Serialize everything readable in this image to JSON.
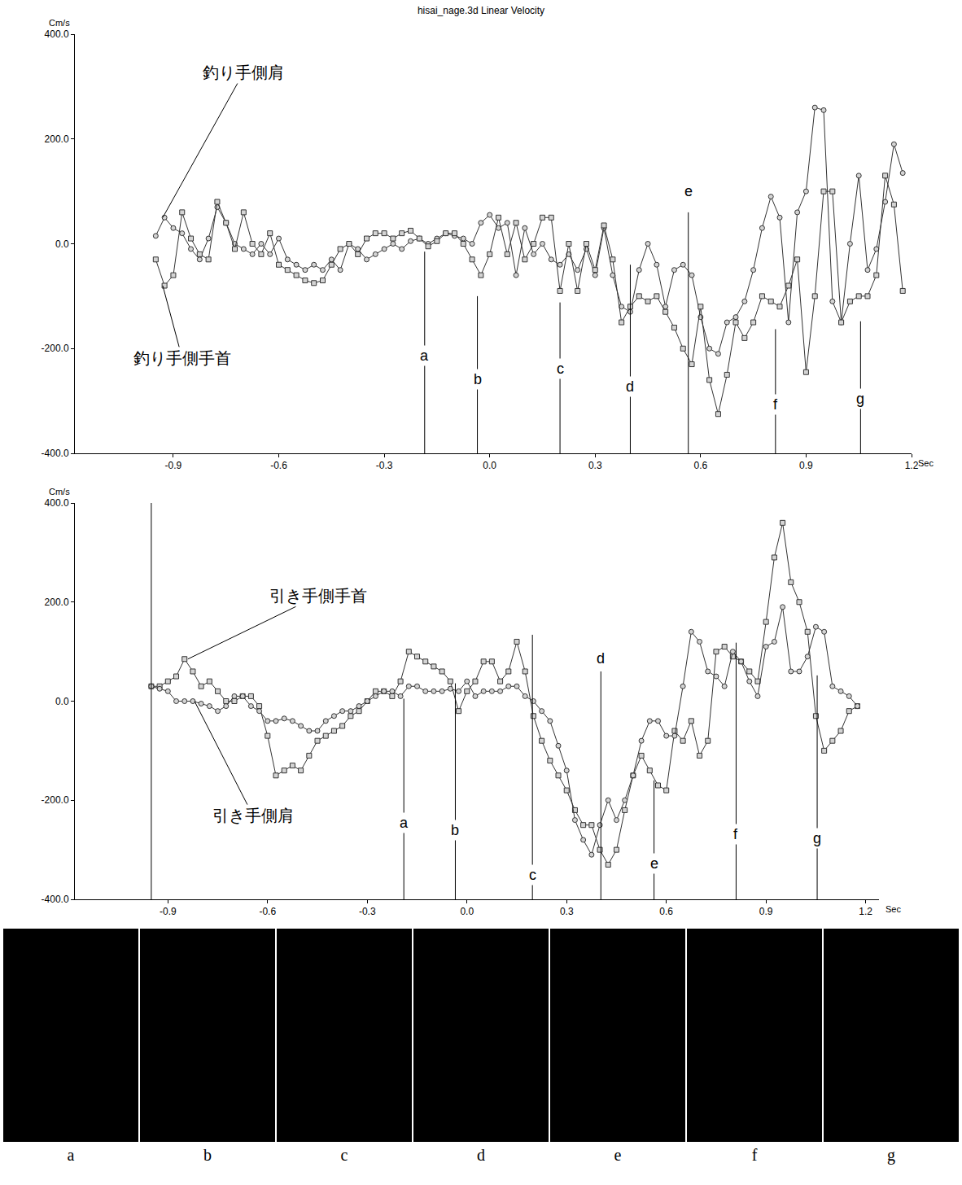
{
  "chart_data": [
    {
      "type": "line",
      "title": "hisai_nage.3d Linear Velocity",
      "y_label": "Cm/s",
      "x_label": "Sec",
      "x": [
        -0.95,
        -0.925,
        -0.9,
        -0.875,
        -0.85,
        -0.825,
        -0.8,
        -0.775,
        -0.75,
        -0.725,
        -0.7,
        -0.675,
        -0.65,
        -0.625,
        -0.6,
        -0.575,
        -0.55,
        -0.525,
        -0.5,
        -0.475,
        -0.45,
        -0.425,
        -0.4,
        -0.375,
        -0.35,
        -0.325,
        -0.3,
        -0.275,
        -0.25,
        -0.225,
        -0.2,
        -0.175,
        -0.15,
        -0.125,
        -0.1,
        -0.075,
        -0.05,
        -0.025,
        0,
        0.025,
        0.05,
        0.075,
        0.1,
        0.125,
        0.15,
        0.175,
        0.2,
        0.225,
        0.25,
        0.275,
        0.3,
        0.325,
        0.35,
        0.375,
        0.4,
        0.425,
        0.45,
        0.475,
        0.5,
        0.525,
        0.55,
        0.575,
        0.6,
        0.625,
        0.65,
        0.675,
        0.7,
        0.725,
        0.75,
        0.775,
        0.8,
        0.825,
        0.85,
        0.875,
        0.9,
        0.925,
        0.95,
        0.975,
        1.0,
        1.025,
        1.05,
        1.075,
        1.1,
        1.125,
        1.15,
        1.175
      ],
      "series": [
        {
          "name": "釣り手側肩",
          "color": "#333333",
          "marker": "circle",
          "label_at": [
            -0.7,
            327
          ],
          "points_to": [
            -0.93,
            50
          ],
          "values": [
            15,
            50,
            30,
            20,
            -10,
            -30,
            10,
            70,
            40,
            0,
            -10,
            -20,
            0,
            -20,
            10,
            -30,
            -40,
            -50,
            -40,
            -50,
            -30,
            -50,
            0,
            -10,
            -30,
            -20,
            -10,
            0,
            -10,
            5,
            10,
            0,
            10,
            20,
            15,
            10,
            0,
            40,
            55,
            30,
            40,
            -60,
            30,
            -20,
            0,
            -30,
            -40,
            -20,
            -50,
            -10,
            -60,
            30,
            -60,
            -120,
            -130,
            -50,
            0,
            -40,
            -120,
            -50,
            -40,
            -60,
            -140,
            -200,
            -210,
            -150,
            -140,
            -110,
            -50,
            30,
            90,
            50,
            -150,
            60,
            100,
            260,
            255,
            -110,
            -150,
            0,
            130,
            -50,
            -10,
            80,
            190,
            135
          ]
        },
        {
          "name": "釣り手側手首",
          "color": "#333333",
          "marker": "square",
          "label_at": [
            -0.875,
            -218
          ],
          "points_to": [
            -0.93,
            -80
          ],
          "values": [
            -30,
            -80,
            -60,
            60,
            10,
            -20,
            -30,
            80,
            40,
            -10,
            60,
            0,
            -20,
            20,
            -40,
            -50,
            -60,
            -70,
            -75,
            -70,
            -40,
            -10,
            0,
            -20,
            10,
            20,
            20,
            10,
            20,
            25,
            10,
            -5,
            5,
            20,
            20,
            0,
            -30,
            -60,
            -20,
            50,
            -20,
            40,
            -30,
            0,
            50,
            50,
            -90,
            0,
            -90,
            0,
            -50,
            35,
            -30,
            -150,
            -120,
            -100,
            -110,
            -100,
            -130,
            -160,
            -200,
            -230,
            -120,
            -260,
            -325,
            -250,
            -150,
            -180,
            -150,
            -100,
            -110,
            -120,
            -80,
            -30,
            -245,
            -100,
            100,
            100,
            -150,
            -110,
            -100,
            -100,
            -60,
            130,
            75,
            -90
          ]
        }
      ],
      "xlim": [
        -1.18,
        1.2
      ],
      "xticks": [
        -0.9,
        -0.6,
        -0.3,
        {
          "value": 0,
          "label": "0.0"
        },
        0.3,
        0.6,
        0.9,
        1.2
      ],
      "ylim": [
        -400,
        400
      ],
      "yticks": [
        {
          "value": -400,
          "label": "-400.0"
        },
        {
          "value": -200,
          "label": "-200.0"
        },
        {
          "value": 0,
          "label": "0.0"
        },
        {
          "value": 200,
          "label": "200.0"
        },
        {
          "value": 400,
          "label": "400.0"
        }
      ],
      "grid": false,
      "markers": [
        {
          "label": "a",
          "x": -0.185,
          "line_top": -15,
          "label_y": -213
        },
        {
          "label": "b",
          "x": -0.035,
          "line_top": -100,
          "label_y": -258
        },
        {
          "label": "c",
          "x": 0.2,
          "line_top": -112,
          "label_y": -238
        },
        {
          "label": "d",
          "x": 0.4,
          "line_top": -40,
          "label_y": -272
        },
        {
          "label": "e",
          "x": 0.565,
          "line_top": 60,
          "label_y": 100
        },
        {
          "label": "f",
          "x": 0.813,
          "line_top": -163,
          "label_y": -307
        },
        {
          "label": "g",
          "x": 1.055,
          "line_top": -148,
          "label_y": -296
        }
      ]
    },
    {
      "type": "line",
      "y_label": "Cm/s",
      "x_label": "Sec",
      "x": [
        -0.95,
        -0.925,
        -0.9,
        -0.875,
        -0.85,
        -0.825,
        -0.8,
        -0.775,
        -0.75,
        -0.725,
        -0.7,
        -0.675,
        -0.65,
        -0.625,
        -0.6,
        -0.575,
        -0.55,
        -0.525,
        -0.5,
        -0.475,
        -0.45,
        -0.425,
        -0.4,
        -0.375,
        -0.35,
        -0.325,
        -0.3,
        -0.275,
        -0.25,
        -0.225,
        -0.2,
        -0.175,
        -0.15,
        -0.125,
        -0.1,
        -0.075,
        -0.05,
        -0.025,
        0,
        0.025,
        0.05,
        0.075,
        0.1,
        0.125,
        0.15,
        0.175,
        0.2,
        0.225,
        0.25,
        0.275,
        0.3,
        0.325,
        0.35,
        0.375,
        0.4,
        0.425,
        0.45,
        0.475,
        0.5,
        0.525,
        0.55,
        0.575,
        0.6,
        0.625,
        0.65,
        0.675,
        0.7,
        0.725,
        0.75,
        0.775,
        0.8,
        0.825,
        0.85,
        0.875,
        0.9,
        0.925,
        0.95,
        0.975,
        1.0,
        1.025,
        1.05,
        1.075,
        1.1,
        1.125,
        1.15,
        1.175
      ],
      "series": [
        {
          "name": "引き手側手首",
          "color": "#333333",
          "marker": "square",
          "label_at": [
            -0.447,
            213
          ],
          "points_to": [
            -0.84,
            85
          ],
          "values": [
            30,
            30,
            40,
            50,
            85,
            60,
            30,
            40,
            20,
            0,
            0,
            10,
            10,
            -10,
            -70,
            -150,
            -140,
            -130,
            -140,
            -110,
            -80,
            -70,
            -60,
            -50,
            -30,
            -20,
            0,
            20,
            20,
            10,
            40,
            100,
            90,
            80,
            70,
            60,
            40,
            -20,
            20,
            40,
            80,
            80,
            40,
            60,
            120,
            60,
            -30,
            -80,
            -120,
            -150,
            -180,
            -220,
            -250,
            -250,
            -300,
            -330,
            -300,
            -220,
            -150,
            -110,
            -140,
            -170,
            -180,
            -60,
            -80,
            -40,
            -110,
            -80,
            100,
            110,
            90,
            80,
            60,
            40,
            160,
            290,
            360,
            240,
            200,
            140,
            -30,
            -100,
            -80,
            -60,
            -20,
            -10
          ]
        },
        {
          "name": "引き手側肩",
          "color": "#333333",
          "marker": "circle",
          "label_at": [
            -0.644,
            -231
          ],
          "points_to": [
            -0.82,
            0
          ],
          "values": [
            30,
            25,
            20,
            0,
            0,
            0,
            -5,
            -10,
            -20,
            -10,
            10,
            10,
            -10,
            -20,
            -40,
            -40,
            -35,
            -40,
            -50,
            -60,
            -60,
            -40,
            -30,
            -20,
            -20,
            -10,
            0,
            10,
            20,
            20,
            10,
            30,
            30,
            20,
            20,
            20,
            25,
            20,
            40,
            10,
            20,
            20,
            20,
            30,
            30,
            10,
            0,
            -20,
            -40,
            -90,
            -140,
            -240,
            -280,
            -310,
            -250,
            -200,
            -240,
            -200,
            -150,
            -80,
            -40,
            -40,
            -70,
            -70,
            30,
            140,
            120,
            60,
            50,
            30,
            100,
            80,
            40,
            10,
            110,
            120,
            190,
            60,
            60,
            90,
            150,
            140,
            30,
            20,
            10,
            -10
          ]
        }
      ],
      "xlim": [
        -1.18,
        1.24
      ],
      "xticks": [
        -0.9,
        -0.6,
        -0.3,
        {
          "value": 0,
          "label": "0.0"
        },
        0.3,
        0.6,
        0.9,
        1.2
      ],
      "ylim": [
        -400,
        400
      ],
      "yticks": [
        {
          "value": -400,
          "label": "-400.0"
        },
        {
          "value": -200,
          "label": "-200.0"
        },
        {
          "value": 0,
          "label": "0.0"
        },
        {
          "value": 200,
          "label": "200.0"
        },
        {
          "value": 400,
          "label": "400.0"
        }
      ],
      "grid": false,
      "cursor_x": -0.95,
      "markers": [
        {
          "label": "a",
          "x": -0.19,
          "line_top": 5,
          "label_y": -246
        },
        {
          "label": "b",
          "x": -0.035,
          "line_top": 36,
          "label_y": -260
        },
        {
          "label": "c",
          "x": 0.197,
          "line_top": 134,
          "label_y": -351
        },
        {
          "label": "d",
          "x": 0.403,
          "line_top": 60,
          "label_y": 87
        },
        {
          "label": "e",
          "x": 0.563,
          "line_top": -160,
          "label_y": -328
        },
        {
          "label": "f",
          "x": 0.81,
          "line_top": 118,
          "label_y": -269
        },
        {
          "label": "g",
          "x": 1.054,
          "line_top": 52,
          "label_y": -277
        }
      ]
    }
  ],
  "frames": {
    "labels": [
      "a",
      "b",
      "c",
      "d",
      "e",
      "f",
      "g"
    ]
  }
}
